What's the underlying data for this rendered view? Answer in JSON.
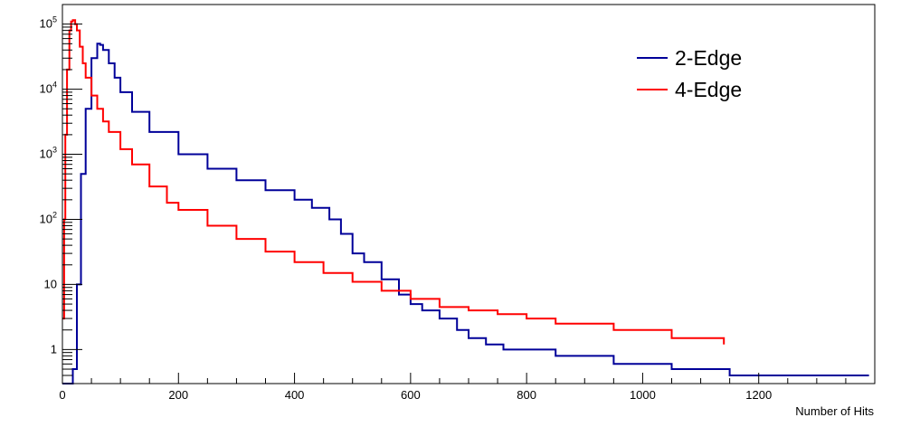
{
  "chart_data": {
    "type": "line",
    "title": "",
    "xlabel": "Number of Hits",
    "ylabel": "",
    "xlim": [
      0,
      1400
    ],
    "ylim": [
      0.3,
      200000
    ],
    "yscale": "log",
    "grid": false,
    "legend": {
      "position": "top-right",
      "frame": false
    },
    "x_ticks": [
      0,
      200,
      400,
      600,
      800,
      1000,
      1200
    ],
    "x_tick_labels": [
      "0",
      "200",
      "400",
      "600",
      "800",
      "1000",
      "1200"
    ],
    "y_ticks": [
      1,
      10,
      100,
      1000,
      10000,
      100000
    ],
    "y_tick_labels": [
      {
        "base": "1",
        "exp": ""
      },
      {
        "base": "10",
        "exp": ""
      },
      {
        "base": "10",
        "exp": "2"
      },
      {
        "base": "10",
        "exp": "3"
      },
      {
        "base": "10",
        "exp": "4"
      },
      {
        "base": "10",
        "exp": "5"
      }
    ],
    "series": [
      {
        "name": "2-Edge",
        "color": "#000099",
        "x": [
          0,
          10,
          18,
          25,
          32,
          40,
          50,
          60,
          65,
          70,
          80,
          90,
          100,
          120,
          150,
          200,
          250,
          300,
          350,
          400,
          430,
          460,
          480,
          500,
          520,
          550,
          580,
          600,
          620,
          650,
          680,
          700,
          730,
          760,
          800,
          850,
          900,
          950,
          1000,
          1050,
          1100,
          1150,
          1200,
          1250,
          1300,
          1350,
          1390
        ],
        "y": [
          0.3,
          0.3,
          0.5,
          10,
          500,
          5000,
          30000,
          50000,
          48000,
          40000,
          25000,
          15000,
          9000,
          4500,
          2200,
          1000,
          600,
          400,
          280,
          200,
          150,
          100,
          60,
          30,
          22,
          12,
          7,
          5,
          4,
          3,
          2,
          1.5,
          1.2,
          1,
          1,
          0.8,
          0.8,
          0.6,
          0.6,
          0.5,
          0.5,
          0.4,
          0.4,
          0.4,
          0.4,
          0.4,
          0.4
        ]
      },
      {
        "name": "4-Edge",
        "color": "#ff0000",
        "x": [
          0,
          3,
          5,
          8,
          12,
          15,
          18,
          22,
          25,
          30,
          35,
          40,
          50,
          60,
          70,
          80,
          100,
          120,
          150,
          180,
          200,
          250,
          300,
          350,
          400,
          450,
          500,
          550,
          600,
          650,
          700,
          750,
          800,
          850,
          900,
          950,
          1000,
          1050,
          1100,
          1140
        ],
        "y": [
          3,
          100,
          2000,
          20000,
          80000,
          110000,
          115000,
          100000,
          80000,
          45000,
          25000,
          15000,
          8000,
          5000,
          3200,
          2200,
          1200,
          700,
          320,
          180,
          140,
          80,
          50,
          32,
          22,
          15,
          11,
          8,
          6,
          4.5,
          4,
          3.5,
          3,
          2.5,
          2.5,
          2,
          2,
          1.5,
          1.5,
          1.2
        ]
      }
    ]
  }
}
